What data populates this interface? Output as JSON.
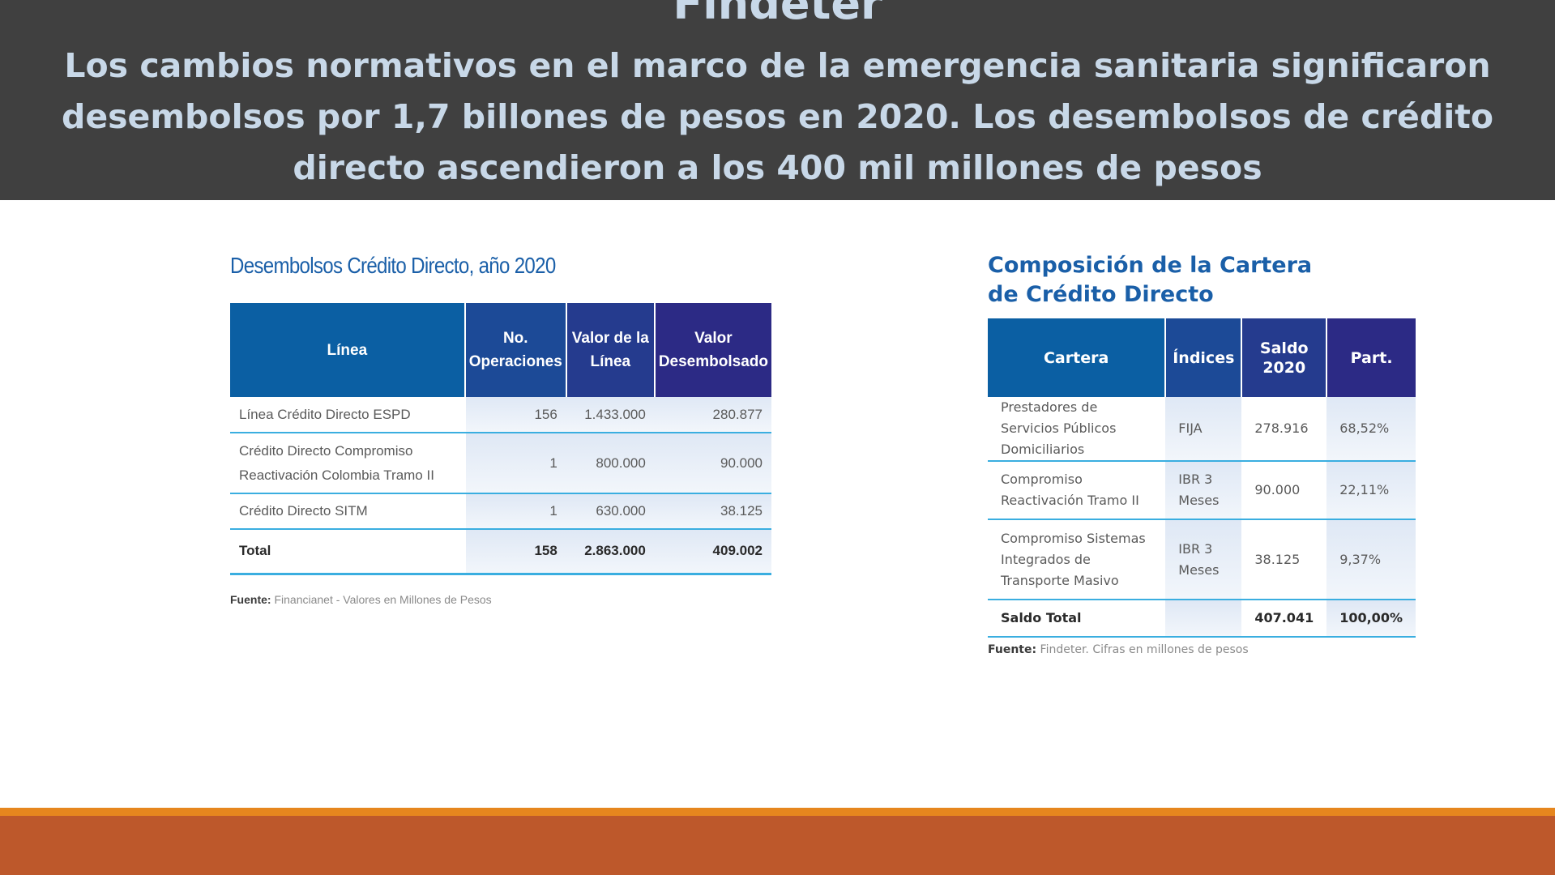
{
  "header": {
    "title": "Findeter",
    "subtitle": "Los cambios normativos en el marco de la emergencia sanitaria significaron desembolsos por 1,7 billones de pesos en 2020. Los desembolsos de crédito directo ascendieron a los 400 mil millones de pesos"
  },
  "left_table": {
    "title": "Desembolsos Crédito Directo, año 2020",
    "headers": [
      "Línea",
      "No. Operaciones",
      "Valor de la Línea",
      "Valor Desembolsado"
    ],
    "rows": [
      [
        "Línea Crédito Directo ESPD",
        "156",
        "1.433.000",
        "280.877"
      ],
      [
        "Crédito Directo Compromiso Reactivación Colombia Tramo II",
        "1",
        "800.000",
        "90.000"
      ],
      [
        "Crédito Directo SITM",
        "1",
        "630.000",
        "38.125"
      ]
    ],
    "total": [
      "Total",
      "158",
      "2.863.000",
      "409.002"
    ],
    "source_label": "Fuente:",
    "source_text": "Financianet - Valores en Millones de Pesos",
    "header_gradient": [
      "#0b5fa3",
      "#2c2a85"
    ]
  },
  "right_table": {
    "title": "Composición de la Cartera de Crédito Directo",
    "headers": [
      "Cartera",
      "Índices",
      "Saldo 2020",
      "Part."
    ],
    "rows": [
      [
        "Prestadores de Servicios Públicos Domiciliarios",
        "FIJA",
        "278.916",
        "68,52%"
      ],
      [
        "Compromiso Reactivación Tramo II",
        "IBR 3 Meses",
        "90.000",
        "22,11%"
      ],
      [
        "Compromiso Sistemas Integrados de Transporte Masivo",
        "IBR 3 Meses",
        "38.125",
        "9,37%"
      ]
    ],
    "total": [
      "Saldo Total",
      "",
      "407.041",
      "100,00%"
    ],
    "source_label": "Fuente:",
    "source_text": "Findeter. Cifras en millones de pesos"
  },
  "colors": {
    "header_band": "#404040",
    "header_text": "#c8d8e8",
    "title_blue": "#1a5fa8",
    "row_rule": "#3aaee0",
    "footer_orange": "#e6861e",
    "footer_rust": "#bd582b"
  }
}
